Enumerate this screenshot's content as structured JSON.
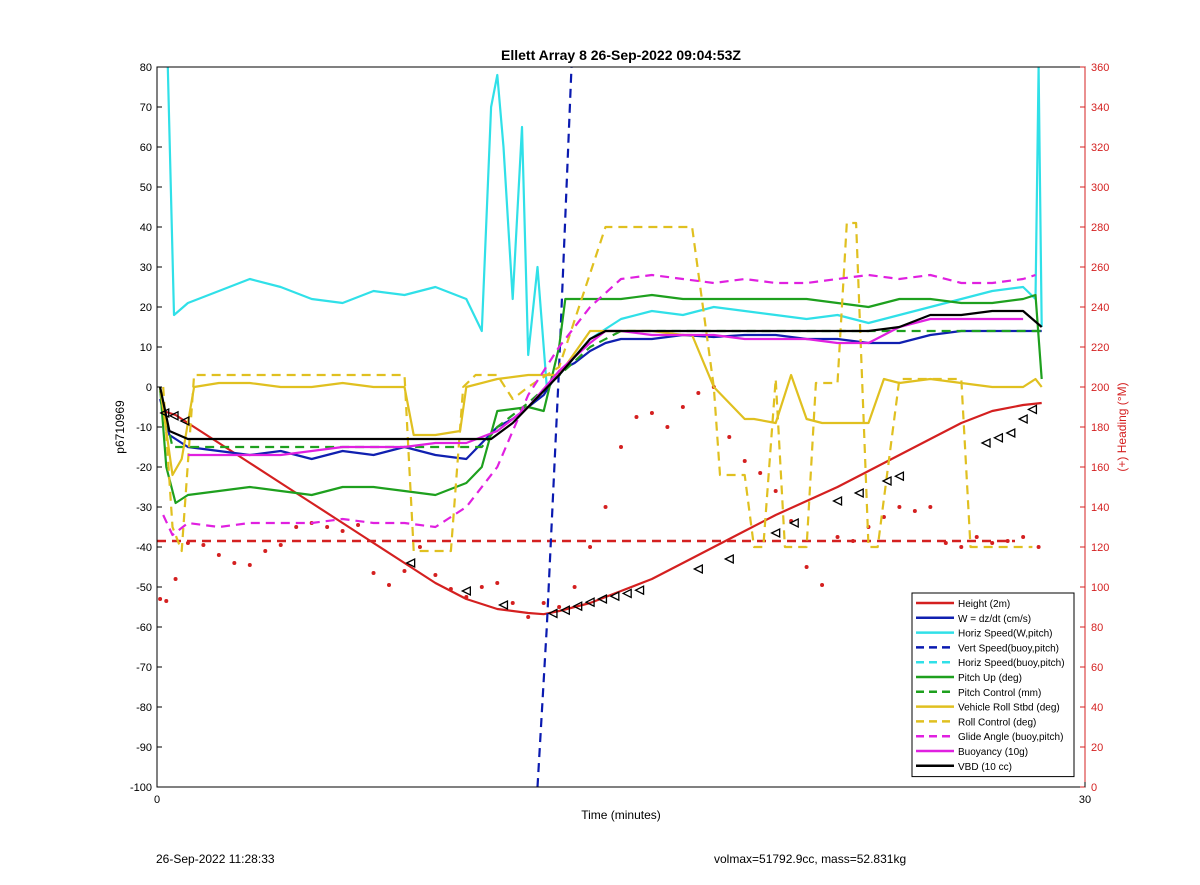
{
  "chart_data": {
    "type": "line",
    "title": "Ellett Array 8 26-Sep-2022 09:04:53Z",
    "xlabel": "Time (minutes)",
    "ylabel": "p6710969",
    "y2label": "(+) Heading (°M)",
    "xlim": [
      0,
      30
    ],
    "ylim": [
      -100,
      80
    ],
    "y2lim": [
      0,
      360
    ],
    "x_ticks": [
      0,
      30
    ],
    "y_ticks": [
      -100,
      -90,
      -80,
      -70,
      -60,
      -50,
      -40,
      -30,
      -20,
      -10,
      0,
      10,
      20,
      30,
      40,
      50,
      60,
      70,
      80
    ],
    "y2_ticks": [
      0,
      20,
      40,
      60,
      80,
      100,
      120,
      140,
      160,
      180,
      200,
      220,
      240,
      260,
      280,
      300,
      320,
      340,
      360
    ],
    "grid": false,
    "legend_position": "bottom-right",
    "colors": {
      "red": "#d42020",
      "blue": "#1020b0",
      "cyan": "#30e0e8",
      "darkblue": "#0a1ab0",
      "green": "#1ea01e",
      "yellow": "#e0c020",
      "magenta": "#e020e0",
      "black": "#000000",
      "axis2": "#d42020"
    },
    "series": [
      {
        "name": "Height (2m)",
        "color": "#d42020",
        "dash": false,
        "x": [
          0.2,
          0.6,
          1,
          2,
          3,
          4,
          5,
          6,
          7,
          8,
          9,
          10,
          11,
          12,
          12.5,
          13,
          14,
          15,
          16,
          17,
          18,
          19,
          20,
          21,
          22,
          23,
          24,
          25,
          26,
          27,
          28,
          28.6
        ],
        "y": [
          -6,
          -7,
          -9,
          -14,
          -19,
          -24,
          -29,
          -34,
          -39,
          -44,
          -49,
          -53,
          -55.5,
          -56.5,
          -56.8,
          -56,
          -54,
          -51,
          -48,
          -44,
          -40,
          -36,
          -32,
          -28.5,
          -25,
          -21,
          -17,
          -13,
          -9,
          -6,
          -4.5,
          -4
        ]
      },
      {
        "name": "W = dz/dt (cm/s)",
        "color": "#1020b0",
        "dash": false,
        "x": [
          0.1,
          0.4,
          1,
          2,
          3,
          4,
          5,
          6,
          7,
          8,
          9,
          10,
          10.5,
          11,
          11.5,
          12,
          12.5,
          13,
          13.5,
          14,
          14.5,
          15,
          16,
          17,
          18,
          19,
          20,
          21,
          22,
          23,
          24,
          25,
          26,
          27,
          28,
          28.6
        ],
        "y": [
          -3,
          -12,
          -15,
          -16,
          -17,
          -16,
          -18,
          -16,
          -17,
          -15,
          -17,
          -18,
          -14,
          -10,
          -8,
          -5,
          -2,
          4,
          6,
          9,
          11,
          12,
          12,
          13,
          12.5,
          13,
          13,
          12,
          12,
          11,
          11,
          13,
          14,
          14,
          14,
          14
        ]
      },
      {
        "name": "Horiz Speed(W,pitch)",
        "color": "#30e0e8",
        "dash": false,
        "x": [
          0.35,
          0.55,
          0.7,
          1,
          2,
          3,
          4,
          5,
          6,
          7,
          8,
          9,
          10,
          10.5,
          10.8,
          11,
          11.2,
          11.5,
          11.8,
          12,
          12.3,
          12.6,
          13,
          14,
          15,
          16,
          17,
          18,
          19,
          20,
          21,
          22,
          23,
          24,
          25,
          26,
          27,
          28,
          28.4,
          28.5,
          28.6
        ],
        "y": [
          80,
          18,
          19,
          21,
          24,
          27,
          25,
          22,
          21,
          24,
          23,
          25,
          22,
          14,
          70,
          78,
          60,
          22,
          65,
          8,
          30,
          0,
          3,
          12,
          17,
          19,
          18,
          20,
          19,
          18,
          17,
          18,
          16,
          18,
          20,
          22,
          24,
          25,
          22,
          80,
          15
        ]
      },
      {
        "name": "Vert Speed(buoy,pitch)",
        "color": "#0a1ab0",
        "dash": true,
        "x": [
          12.3,
          12.6,
          13,
          13.4
        ],
        "y": [
          -100,
          -60,
          5,
          80
        ]
      },
      {
        "name": "Horiz Speed(buoy,pitch)",
        "color": "#30e0e8",
        "dash": true,
        "x": [],
        "y": []
      },
      {
        "name": "Pitch Up (deg)",
        "color": "#1ea01e",
        "dash": false,
        "x": [
          0.1,
          0.3,
          0.6,
          1,
          2,
          3,
          4,
          5,
          6,
          7,
          8,
          9,
          10,
          10.5,
          11,
          12,
          12.5,
          13,
          13.2,
          14,
          15,
          16,
          17,
          18,
          19,
          20,
          21,
          22,
          23,
          24,
          25,
          26,
          27,
          28,
          28.4,
          28.6
        ],
        "y": [
          0,
          -20,
          -29,
          -27,
          -26,
          -25,
          -26,
          -27,
          -25,
          -25,
          -26,
          -27,
          -24,
          -20,
          -6,
          -5,
          -6,
          10,
          22,
          22,
          22,
          23,
          22,
          22,
          22,
          22,
          22,
          21,
          20,
          22,
          22,
          21,
          21,
          22,
          23,
          2
        ]
      },
      {
        "name": "Pitch Control (mm)",
        "color": "#1ea01e",
        "dash": true,
        "x": [
          0.1,
          0.5,
          1,
          10.5,
          11,
          12,
          13.3,
          14,
          15,
          16,
          28,
          28.6
        ],
        "y": [
          -1,
          -15,
          -15,
          -15,
          -10,
          -4,
          5,
          10,
          14,
          14,
          14,
          14
        ]
      },
      {
        "name": "Vehicle Roll Stbd (deg)",
        "color": "#e0c020",
        "dash": false,
        "x": [
          0.1,
          0.5,
          0.8,
          1.2,
          2,
          3,
          4,
          5,
          6,
          7,
          8,
          8.3,
          9,
          9.8,
          10,
          11,
          12,
          13,
          14,
          15,
          16,
          17,
          17.3,
          18,
          19,
          19.3,
          20,
          20.5,
          21,
          21.5,
          22,
          23,
          23.5,
          24,
          25,
          26,
          27,
          28,
          28.4,
          28.6
        ],
        "y": [
          0,
          -22,
          -18,
          0,
          1,
          1,
          0,
          0,
          1,
          0,
          0,
          -12,
          -12,
          -11,
          0,
          2,
          3,
          3,
          14,
          14,
          14,
          13,
          13,
          0,
          -8,
          -8,
          -9,
          3,
          -8,
          -9,
          -9,
          -9,
          2,
          1,
          2,
          1,
          0,
          0,
          2,
          0
        ]
      },
      {
        "name": "Roll Control (deg)",
        "color": "#e0c020",
        "dash": true,
        "x": [
          0.2,
          0.5,
          0.8,
          1.2,
          8,
          8.3,
          9.5,
          9.9,
          10.3,
          11,
          11.5,
          12,
          13,
          14.5,
          16,
          17,
          17.3,
          18,
          18.2,
          19,
          19.3,
          19.6,
          20,
          20.3,
          21,
          21.3,
          22,
          22.3,
          22.6,
          23,
          23.3,
          24,
          24.2,
          26,
          26.3,
          27,
          27.3,
          28.3
        ],
        "y": [
          0,
          -35,
          -41,
          3,
          3,
          -41,
          -41,
          0,
          3,
          3,
          -3,
          0,
          5,
          40,
          40,
          40,
          40,
          0,
          -22,
          -22,
          -40,
          -40,
          2,
          -40,
          -40,
          1,
          1,
          41,
          41,
          -40,
          -40,
          2,
          2,
          2,
          -40,
          -40,
          -40,
          -40
        ]
      },
      {
        "name": "Glide Angle (buoy,pitch)",
        "color": "#e020e0",
        "dash": true,
        "x": [
          0.2,
          0.5,
          1,
          2,
          3,
          4,
          5,
          6,
          7,
          8,
          9,
          10,
          11,
          12,
          13,
          14,
          15,
          16,
          17,
          18,
          19,
          20,
          21,
          22,
          23,
          24,
          25,
          26,
          27,
          28,
          28.4
        ],
        "y": [
          -32,
          -37,
          -34,
          -35,
          -34,
          -34,
          -34,
          -33,
          -34,
          -34,
          -35,
          -30,
          -20,
          -2,
          10,
          20,
          27,
          28,
          27,
          26,
          27,
          26,
          26,
          27,
          28,
          27,
          28,
          26,
          26,
          27,
          28
        ]
      },
      {
        "name": "Buoyancy (10g)",
        "color": "#e020e0",
        "dash": false,
        "x": [
          1,
          2,
          3,
          4,
          5,
          6,
          7,
          8,
          9,
          10,
          11,
          12,
          13,
          14,
          14.5,
          15,
          16,
          17,
          18,
          19,
          20,
          21,
          22,
          23,
          24,
          25,
          26,
          27,
          28
        ],
        "y": [
          -17,
          -17,
          -17,
          -17,
          -16,
          -15,
          -15,
          -15,
          -14,
          -14,
          -11,
          -5,
          4,
          11,
          14,
          14,
          13,
          13,
          13,
          12,
          12,
          12,
          11,
          11,
          15,
          17,
          17,
          17,
          17
        ]
      },
      {
        "name": "VBD (10 cc)",
        "color": "#000000",
        "dash": false,
        "x": [
          0.1,
          0.4,
          1,
          2,
          3,
          4,
          5,
          6,
          7,
          8,
          9,
          10.8,
          11.5,
          12,
          13,
          14,
          14.5,
          15,
          16,
          17,
          18,
          19,
          20,
          21,
          22,
          23,
          24,
          25,
          26,
          27,
          28,
          28.6
        ],
        "y": [
          0,
          -11,
          -13,
          -13,
          -13,
          -13,
          -13,
          -13,
          -13,
          -13,
          -13,
          -13,
          -9,
          -5,
          3,
          12,
          14,
          14,
          14,
          14,
          14,
          14,
          14,
          14,
          14,
          14,
          15,
          18,
          18,
          19,
          19,
          15
        ]
      }
    ],
    "heading_reference": {
      "name": "",
      "color": "#d42020",
      "dash": true,
      "y2": 123
    },
    "heading_points": {
      "color": "#d42020",
      "x": [
        0.1,
        0.3,
        0.6,
        1,
        1.5,
        2,
        2.5,
        3,
        3.5,
        4,
        4.5,
        5,
        5.5,
        6,
        6.5,
        7,
        7.5,
        8,
        8.5,
        9,
        9.5,
        10,
        10.5,
        11,
        11.5,
        12,
        12.5,
        13,
        13.5,
        14,
        14.5,
        15,
        15.5,
        16,
        16.5,
        17,
        17.5,
        18,
        18.5,
        19,
        19.5,
        20,
        20.5,
        21,
        21.5,
        22,
        22.5,
        23,
        23.5,
        24,
        24.5,
        25,
        25.5,
        26,
        26.5,
        27,
        27.5,
        28,
        28.5
      ],
      "y2": [
        94,
        93,
        104,
        122,
        121,
        116,
        112,
        111,
        118,
        121,
        130,
        132,
        130,
        128,
        131,
        107,
        101,
        108,
        120,
        106,
        99,
        95,
        100,
        102,
        92,
        85,
        92,
        90,
        100,
        120,
        140,
        170,
        185,
        187,
        180,
        190,
        197,
        200,
        175,
        163,
        157,
        148,
        133,
        110,
        101,
        125,
        123,
        130,
        135,
        140,
        138,
        140,
        122,
        120,
        125,
        122,
        123,
        125,
        120
      ]
    },
    "height_markers": {
      "x": [
        0.25,
        0.55,
        0.9,
        8.2,
        10.0,
        11.2,
        12.8,
        13.2,
        13.6,
        14.0,
        14.4,
        14.8,
        15.2,
        15.6,
        17.5,
        18.5,
        20.0,
        20.6,
        22.0,
        22.7,
        23.6,
        24.0,
        26.8,
        27.2,
        27.6,
        28.0,
        28.3
      ],
      "y": [
        -6.5,
        -7.2,
        -8.5,
        -44,
        -51,
        -54.5,
        -56.6,
        -55.8,
        -54.8,
        -53.8,
        -53,
        -52.3,
        -51.6,
        -50.8,
        -45.5,
        -43,
        -36.5,
        -34,
        -28.5,
        -26.5,
        -23.5,
        -22.3,
        -14,
        -12.7,
        -11.5,
        -8,
        -5.6
      ]
    }
  },
  "footer": {
    "left": "26-Sep-2022 11:28:33",
    "right": "volmax=51792.9cc, mass=52.831kg"
  }
}
